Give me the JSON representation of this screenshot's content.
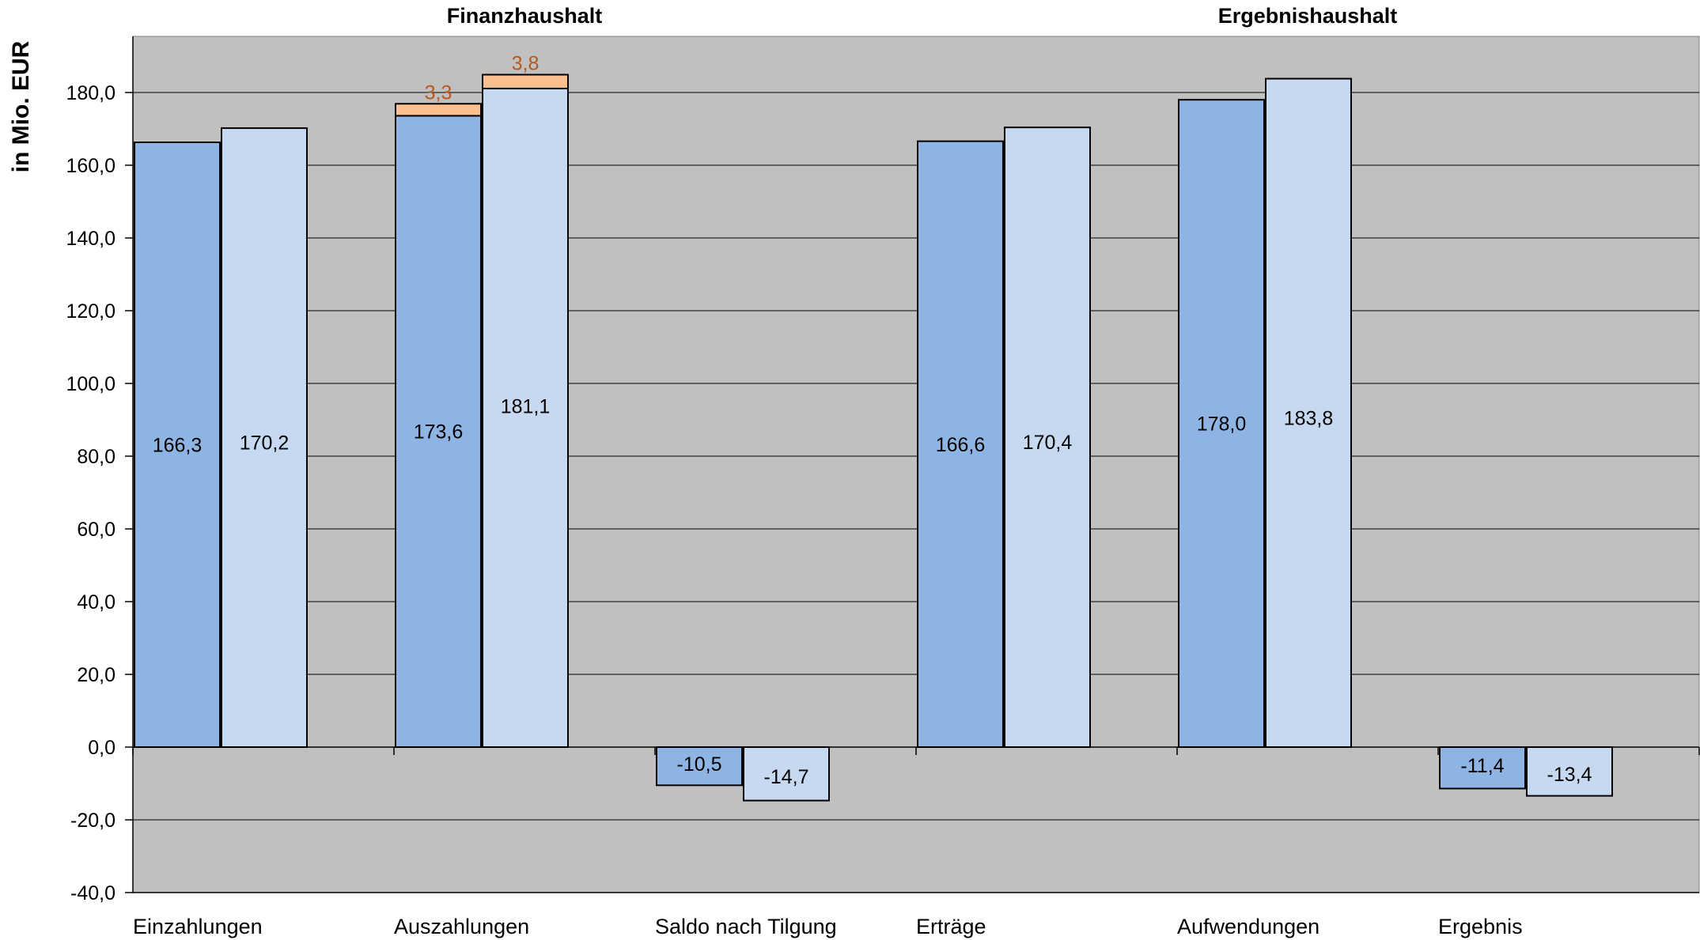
{
  "chart_data": {
    "type": "bar",
    "ylabel": "in Mio. EUR",
    "ylim": [
      -40,
      195
    ],
    "yticks": [
      -40,
      -20,
      0,
      20,
      40,
      60,
      80,
      100,
      120,
      140,
      160,
      180
    ],
    "ytick_labels": [
      "-40,0",
      "-20,0",
      "0,0",
      "20,0",
      "40,0",
      "60,0",
      "80,0",
      "100,0",
      "120,0",
      "140,0",
      "160,0",
      "180,0"
    ],
    "grid": true,
    "group_titles": [
      {
        "text": "Finanzhaushalt",
        "category_span": [
          0,
          2
        ]
      },
      {
        "text": "Ergebnishaushalt",
        "category_span": [
          3,
          5
        ]
      }
    ],
    "categories": [
      "Einzahlungen",
      "Auszahlungen",
      "Saldo nach Tilgung",
      "Erträge",
      "Aufwendungen",
      "Ergebnis"
    ],
    "series": [
      {
        "color": "#8eb4e3",
        "values": [
          166.3,
          173.6,
          -10.5,
          166.6,
          178.0,
          -11.4
        ],
        "labels": [
          "166,3",
          "173,6",
          "-10,5",
          "166,6",
          "178,0",
          "-11,4"
        ]
      },
      {
        "color": "#c6d9f1",
        "values": [
          170.2,
          181.1,
          -14.7,
          170.4,
          183.8,
          -13.4
        ],
        "labels": [
          "170,2",
          "181,1",
          "-14,7",
          "170,4",
          "183,8",
          "-13,4"
        ]
      }
    ],
    "stacked_increments": [
      {
        "series_index": 0,
        "category_index": 1,
        "value": 3.3,
        "label": "3,3",
        "color": "#fac090",
        "label_color": "#b55a1e"
      },
      {
        "series_index": 1,
        "category_index": 1,
        "value": 3.8,
        "label": "3,8",
        "color": "#fac090",
        "label_color": "#b55a1e"
      }
    ],
    "colors": {
      "plot_background": "#c0c0c0",
      "gridline": "#000000",
      "bar_outline": "#000000"
    }
  }
}
